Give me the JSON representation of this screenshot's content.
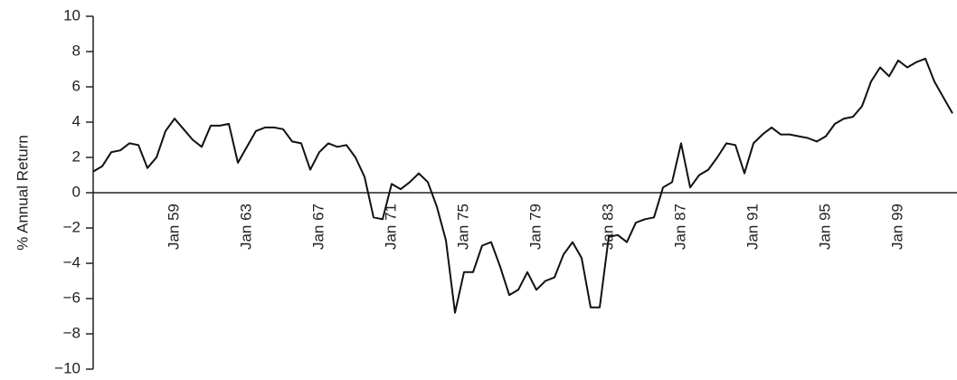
{
  "chart_data": {
    "type": "line",
    "y_label": "% Annual Return",
    "categories": [
      null,
      null,
      null,
      null,
      null,
      null,
      null,
      null,
      null,
      "Jan 59",
      null,
      null,
      null,
      null,
      null,
      null,
      null,
      "Jan 63",
      null,
      null,
      null,
      null,
      null,
      null,
      null,
      "Jan 67",
      null,
      null,
      null,
      null,
      null,
      null,
      null,
      "Jan 71",
      null,
      null,
      null,
      null,
      null,
      null,
      null,
      "Jan 75",
      null,
      null,
      null,
      null,
      null,
      null,
      null,
      "Jan 79",
      null,
      null,
      null,
      null,
      null,
      null,
      null,
      "Jan 83",
      null,
      null,
      null,
      null,
      null,
      null,
      null,
      "Jan 87",
      null,
      null,
      null,
      null,
      null,
      null,
      null,
      "Jan 91",
      null,
      null,
      null,
      null,
      null,
      null,
      null,
      "Jan 95",
      null,
      null,
      null,
      null,
      null,
      null,
      null,
      "Jan 99",
      null,
      null,
      null,
      null,
      null,
      null
    ],
    "series": [
      {
        "name": "% Annual Return",
        "color": "#111111",
        "values": [
          1.2,
          1.5,
          2.3,
          2.4,
          2.8,
          2.7,
          1.4,
          2.0,
          3.5,
          4.2,
          3.6,
          3.0,
          2.6,
          3.8,
          3.8,
          3.9,
          1.7,
          2.6,
          3.5,
          3.7,
          3.7,
          3.6,
          2.9,
          2.8,
          1.3,
          2.3,
          2.8,
          2.6,
          2.7,
          2.0,
          0.9,
          -1.4,
          -1.5,
          0.5,
          0.2,
          0.6,
          1.1,
          0.6,
          -0.8,
          -2.7,
          -6.8,
          -4.5,
          -4.5,
          -3.0,
          -2.8,
          -4.2,
          -5.8,
          -5.5,
          -4.5,
          -5.5,
          -5.0,
          -4.8,
          -3.5,
          -2.8,
          -3.7,
          -6.5,
          -6.5,
          -2.5,
          -2.4,
          -2.8,
          -1.7,
          -1.5,
          -1.4,
          0.3,
          0.6,
          2.8,
          0.3,
          1.0,
          1.3,
          2.0,
          2.8,
          2.7,
          1.1,
          2.8,
          3.3,
          3.7,
          3.3,
          3.3,
          3.2,
          3.1,
          2.9,
          3.2,
          3.9,
          4.2,
          4.3,
          4.9,
          6.3,
          7.1,
          6.6,
          7.5,
          7.1,
          7.4,
          7.6,
          6.3,
          5.4,
          4.5
        ]
      }
    ],
    "ylim": [
      -10,
      10
    ],
    "yticks": [
      {
        "value": -10,
        "label": "−10"
      },
      {
        "value": -8,
        "label": "−8"
      },
      {
        "value": -6,
        "label": "−6"
      },
      {
        "value": -4,
        "label": "−4"
      },
      {
        "value": -2,
        "label": "−2"
      },
      0,
      2,
      4,
      6,
      8,
      10
    ]
  }
}
